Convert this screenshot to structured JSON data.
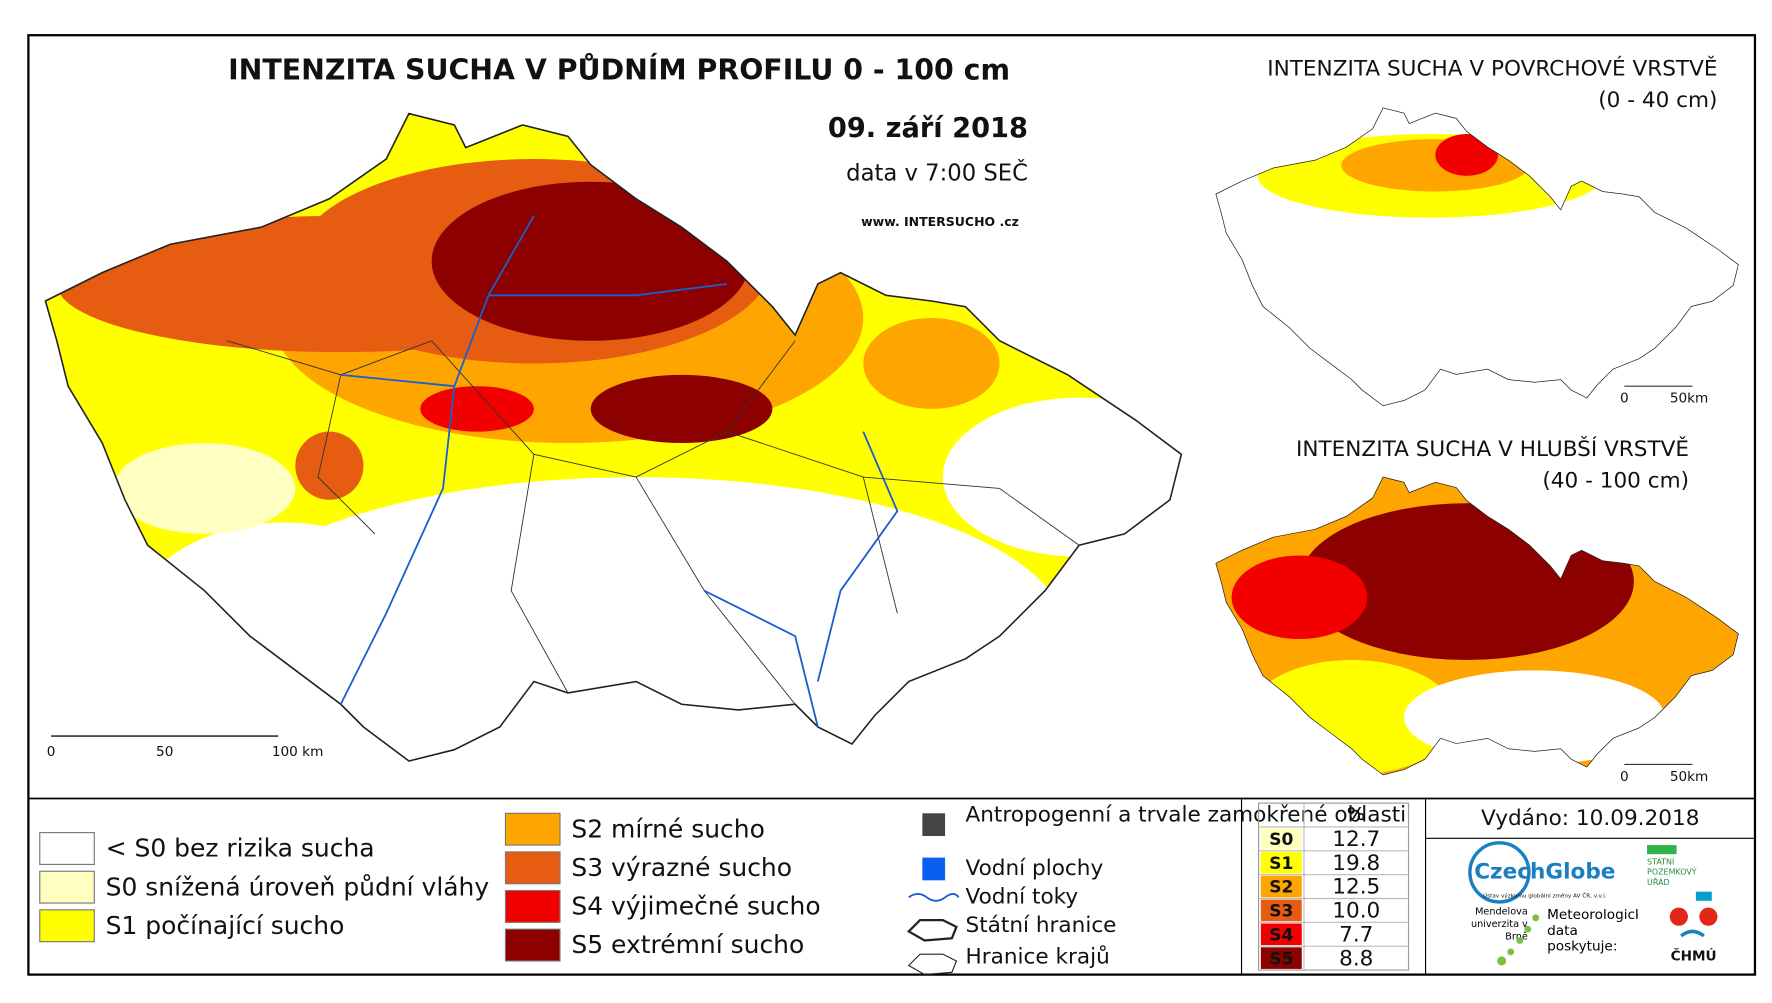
{
  "main_map": {
    "title": "INTENZITA SUCHA V PŮDNÍM PROFILU 0 - 100 cm",
    "date": "09. září 2018",
    "time": "data v 7:00 SEČ",
    "website": "www. INTERSUCHO .cz",
    "scale_labels": [
      "0",
      "50",
      "100 km"
    ]
  },
  "insets": [
    {
      "title": "INTENZITA SUCHA V POVRCHOVÉ VRSTVĚ",
      "subtitle": "(0 - 40 cm)",
      "scale_labels": [
        "0",
        "50km"
      ]
    },
    {
      "title": "INTENZITA SUCHA V HLUBŠÍ VRSTVĚ",
      "subtitle": "(40 - 100 cm)",
      "scale_labels": [
        "0",
        "50km"
      ]
    }
  ],
  "legend": {
    "classes": [
      {
        "label": "< S0 bez rizika sucha",
        "color": "#ffffff"
      },
      {
        "label": "S0 snížená úroveň půdní vláhy",
        "color": "#ffffc0"
      },
      {
        "label": "S1 počínající sucho",
        "color": "#ffff00"
      },
      {
        "label": "S2 mírné sucho",
        "color": "#ffa500"
      },
      {
        "label": "S3 výrazné sucho",
        "color": "#e65c10"
      },
      {
        "label": "S4 výjimečné sucho",
        "color": "#f20000"
      },
      {
        "label": "S5 extrémní sucho",
        "color": "#8c0000"
      }
    ],
    "symbols": [
      "Antropogenní a trvale zamokřené oblasti",
      "Vodní plochy",
      "Vodní toky",
      "Státní hranice",
      "Hranice krajů"
    ]
  },
  "table": {
    "header": "%",
    "rows": [
      [
        "S0",
        "12.7"
      ],
      [
        "S1",
        "19.8"
      ],
      [
        "S2",
        "12.5"
      ],
      [
        "S3",
        "10.0"
      ],
      [
        "S4",
        "7.7"
      ],
      [
        "S5",
        "8.8"
      ]
    ]
  },
  "issued": "Vydáno: 10.09.2018",
  "logos": {
    "czechglobe": "CzechGlobe",
    "czechglobe_sub": "Ústav výzkumu globální změny AV ČR, v.v.i.",
    "spu": "STÁTNÍ POZEMKOVÝ ÚŘAD",
    "mendelu": "Mendelova univerzita v Brně",
    "chmu_note": "Meteorologická data poskytuje:",
    "chmu": "ČHMÚ"
  }
}
